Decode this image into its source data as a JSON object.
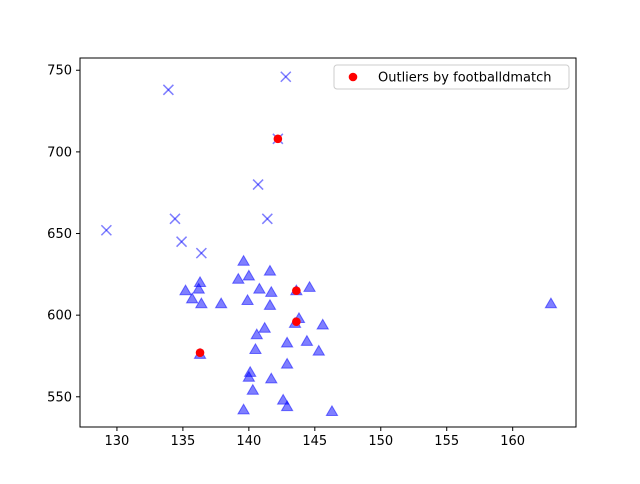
{
  "chart_data": {
    "type": "scatter",
    "title": "",
    "xlabel": "",
    "ylabel": "",
    "xlim": [
      127.2,
      164.8
    ],
    "ylim": [
      531.5,
      757.5
    ],
    "xticks": [
      130,
      135,
      140,
      145,
      150,
      155,
      160
    ],
    "yticks": [
      550,
      600,
      650,
      700,
      750
    ],
    "grid": false,
    "legend_position": "upper-right",
    "series": [
      {
        "marker": "x",
        "color": "#0000ff",
        "alpha": 0.5,
        "points": [
          [
            142.8,
            746
          ],
          [
            133.9,
            738
          ],
          [
            142.2,
            708
          ],
          [
            140.7,
            680
          ],
          [
            134.4,
            659
          ],
          [
            141.4,
            659
          ],
          [
            129.2,
            652
          ],
          [
            134.9,
            645
          ],
          [
            136.4,
            638
          ]
        ]
      },
      {
        "marker": "triangle",
        "color": "#0000ff",
        "alpha": 0.5,
        "points": [
          [
            139.6,
            633
          ],
          [
            141.6,
            627
          ],
          [
            140.0,
            624
          ],
          [
            139.2,
            622
          ],
          [
            136.3,
            620
          ],
          [
            144.6,
            617
          ],
          [
            136.2,
            616
          ],
          [
            140.8,
            616
          ],
          [
            143.6,
            615
          ],
          [
            135.2,
            615
          ],
          [
            141.7,
            614
          ],
          [
            135.7,
            610
          ],
          [
            139.9,
            609
          ],
          [
            136.4,
            607
          ],
          [
            137.9,
            607
          ],
          [
            141.6,
            606
          ],
          [
            162.9,
            607
          ],
          [
            143.8,
            598
          ],
          [
            143.5,
            595
          ],
          [
            145.6,
            594
          ],
          [
            141.2,
            592
          ],
          [
            140.6,
            588
          ],
          [
            144.4,
            584
          ],
          [
            142.9,
            583
          ],
          [
            140.5,
            579
          ],
          [
            145.3,
            578
          ],
          [
            136.3,
            576
          ],
          [
            142.9,
            570
          ],
          [
            140.1,
            565
          ],
          [
            140.0,
            562
          ],
          [
            141.7,
            561
          ],
          [
            140.3,
            554
          ],
          [
            142.6,
            548
          ],
          [
            142.9,
            544
          ],
          [
            139.6,
            542
          ],
          [
            146.3,
            541
          ]
        ]
      },
      {
        "name": "Outliers by footballdmatch",
        "marker": "circle",
        "color": "#ff0000",
        "alpha": 1,
        "points": [
          [
            142.2,
            708
          ],
          [
            143.6,
            615
          ],
          [
            143.6,
            596
          ],
          [
            136.3,
            577
          ]
        ]
      }
    ]
  }
}
